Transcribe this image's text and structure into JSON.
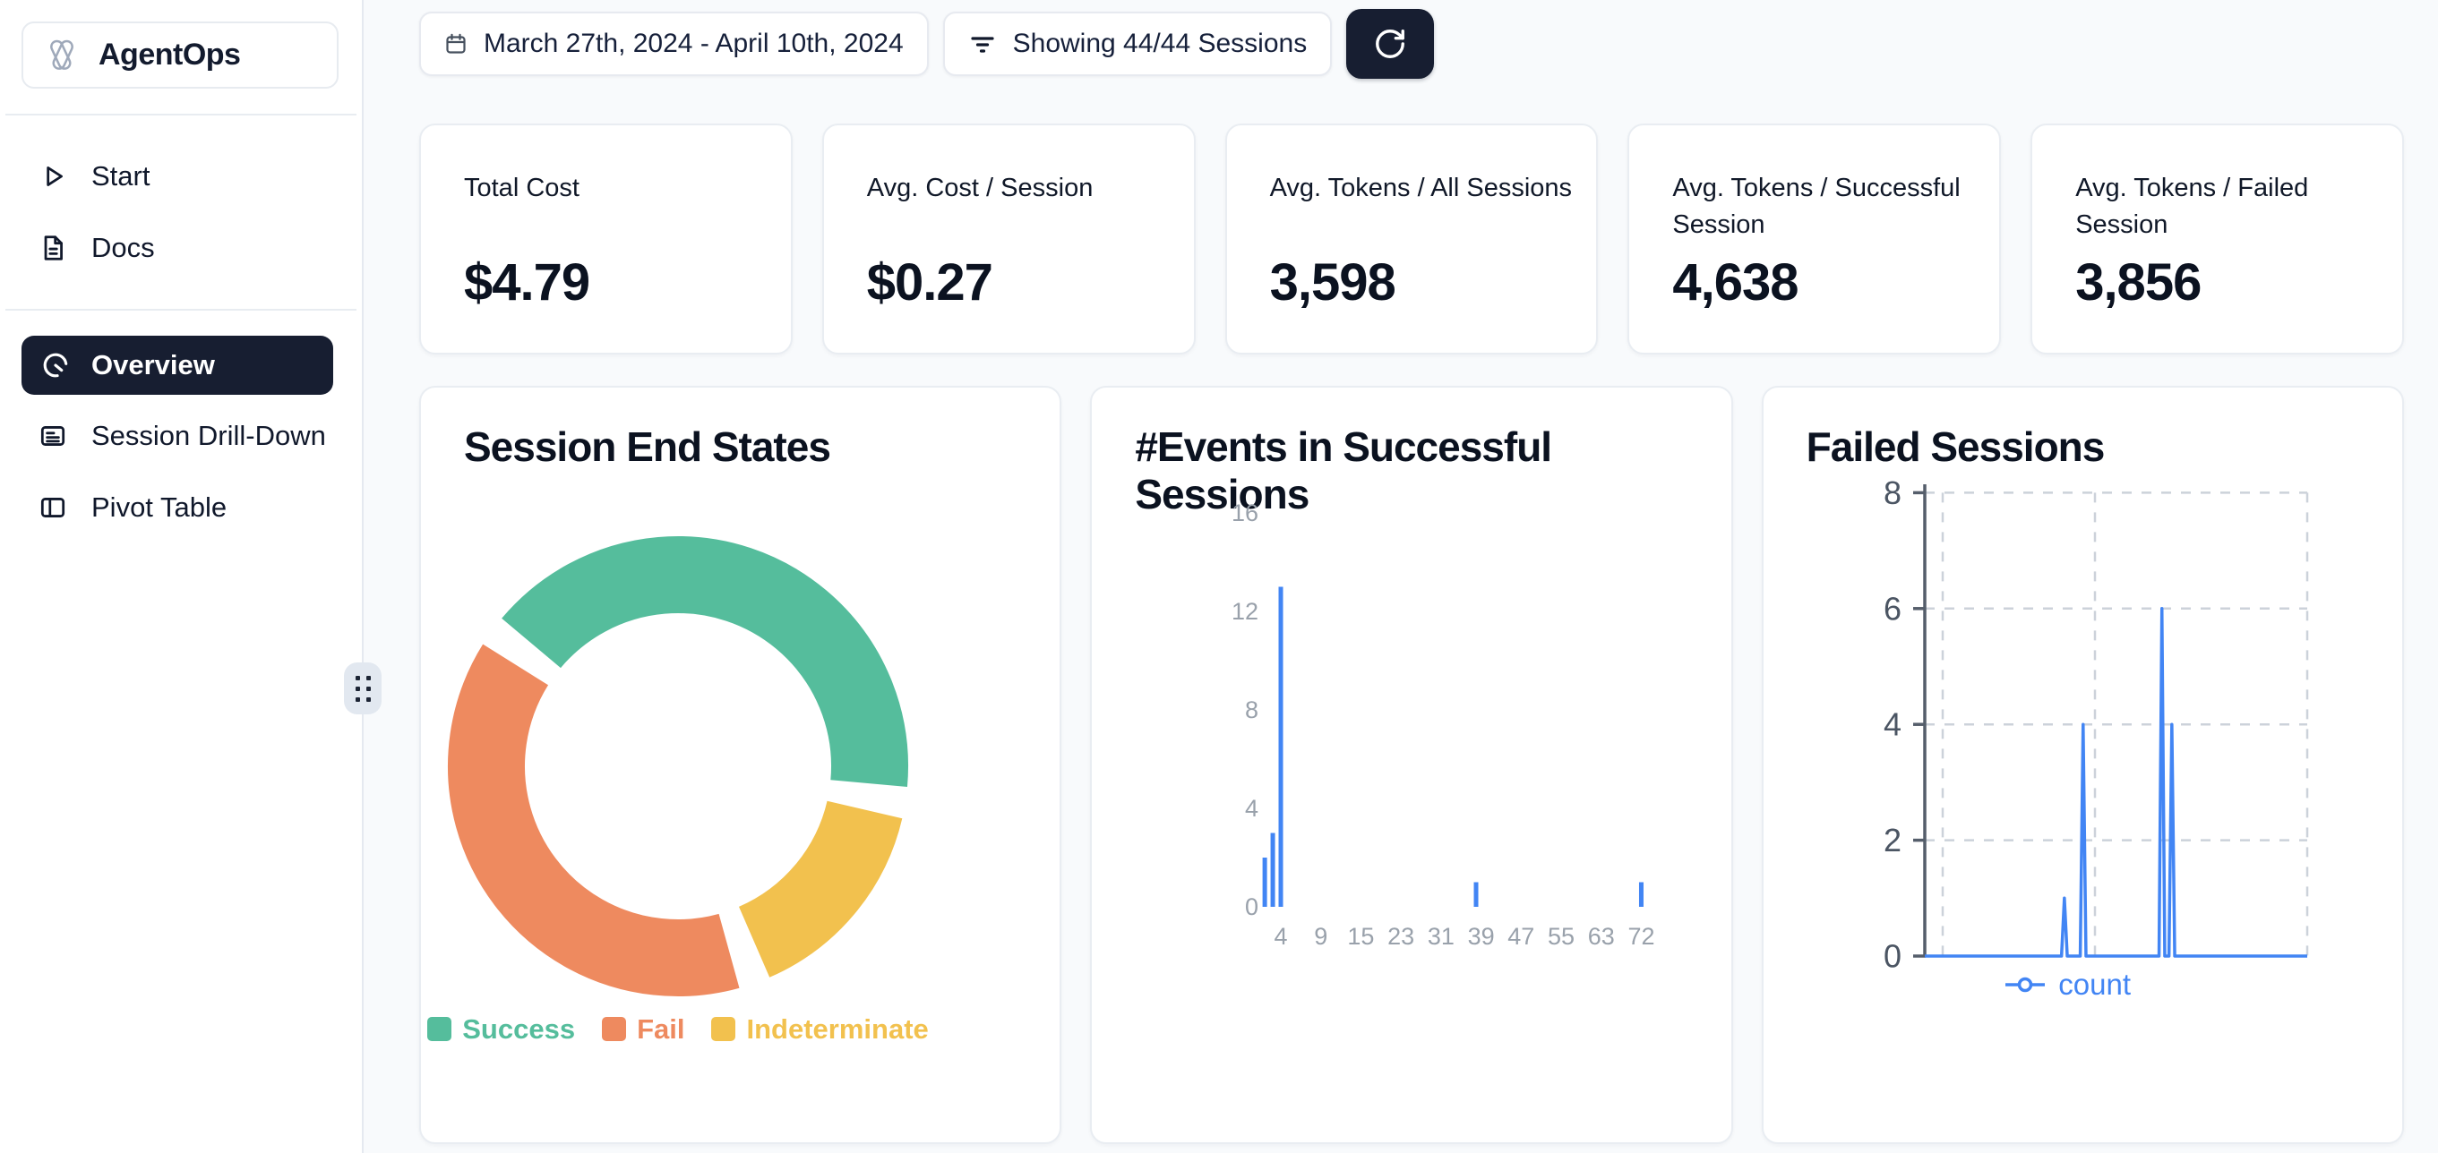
{
  "sidebar": {
    "brand": "AgentOps",
    "groups": [
      {
        "items": [
          {
            "label": "Start",
            "icon": "play-icon"
          },
          {
            "label": "Docs",
            "icon": "document-icon"
          }
        ]
      },
      {
        "items": [
          {
            "label": "Overview",
            "icon": "gauge-icon",
            "selected": true
          },
          {
            "label": "Session Drill-Down",
            "icon": "list-icon"
          },
          {
            "label": "Pivot Table",
            "icon": "columns-icon"
          }
        ]
      }
    ]
  },
  "topbar": {
    "date_range": "March 27th, 2024 - April 10th, 2024",
    "filter_label": "Showing 44/44 Sessions"
  },
  "stats": [
    {
      "label": "Total Cost",
      "value": "$4.79"
    },
    {
      "label": "Avg. Cost / Session",
      "value": "$0.27"
    },
    {
      "label": "Avg. Tokens / All Sessions",
      "value": "3,598"
    },
    {
      "label": "Avg. Tokens / Successful Session",
      "value": "4,638"
    },
    {
      "label": "Avg. Tokens / Failed Session",
      "value": "3,856"
    }
  ],
  "colors": {
    "accent_dark": "#171e31",
    "success_green": "#55BD9C",
    "fail_orange": "#EE8A5F",
    "indeterminate_yellow": "#F2C14E",
    "chart_blue": "#4285F4"
  },
  "chart_data": [
    {
      "type": "pie",
      "donut": true,
      "title": "Session End States",
      "labels": [
        "Success",
        "Fail",
        "Indeterminate"
      ],
      "values": [
        19,
        18,
        7
      ],
      "values_note": "estimated counts of 44 sessions read from arc angles (~43%/41%/16%)",
      "colors": [
        "#55BD9C",
        "#EE8A5F",
        "#F2C14E"
      ],
      "clockwise_order": [
        0,
        2,
        1
      ],
      "start_angle_deg": 140,
      "legend_position": "bottom"
    },
    {
      "type": "bar",
      "title": "#Events in Successful Sessions",
      "bars": [
        {
          "x": 2,
          "count": 2
        },
        {
          "x": 3,
          "count": 3
        },
        {
          "x": 4,
          "count": 13
        },
        {
          "x": 38,
          "count": 1
        },
        {
          "x": 72,
          "count": 1
        }
      ],
      "x_tick_labels": [
        "4",
        "9",
        "15",
        "23",
        "31",
        "39",
        "47",
        "55",
        "63",
        "72"
      ],
      "y_ticks": [
        0,
        4,
        8,
        12,
        16
      ],
      "ylim": [
        0,
        16
      ],
      "grid": "off",
      "color": "#4285F4"
    },
    {
      "type": "line",
      "title": "Failed Sessions",
      "series": [
        {
          "name": "count",
          "color": "#4285F4"
        }
      ],
      "spikes": [
        {
          "pos": 0.365,
          "value": 1
        },
        {
          "pos": 0.414,
          "value": 4
        },
        {
          "pos": 0.62,
          "value": 6
        },
        {
          "pos": 0.646,
          "value": 4
        }
      ],
      "baseline": 0,
      "y_ticks": [
        0,
        2,
        4,
        6,
        8
      ],
      "ylim": [
        0,
        8
      ],
      "grid": "dashed",
      "legend_position": "bottom"
    }
  ]
}
